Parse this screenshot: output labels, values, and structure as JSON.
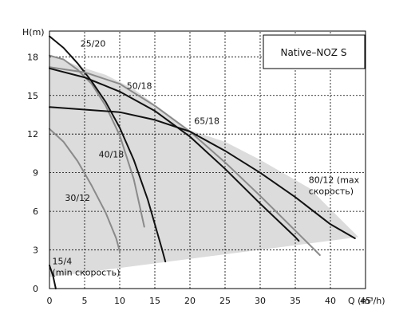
{
  "chart_data": {
    "type": "line",
    "title": "Native–NOZ S",
    "xlabel": "Q (m³/h)",
    "ylabel": "H(m)",
    "xlim": [
      0,
      45
    ],
    "ylim": [
      0,
      20
    ],
    "x_ticks": [
      "0",
      "5",
      "10",
      "15",
      "20",
      "25",
      "30",
      "35",
      "40",
      "45"
    ],
    "y_ticks": [
      "0",
      "3",
      "6",
      "9",
      "12",
      "15",
      "18"
    ],
    "grid": true,
    "shaded_region": {
      "points": [
        [
          0,
          0.9
        ],
        [
          44,
          4.0
        ],
        [
          37,
          7.8
        ],
        [
          30,
          10.0
        ],
        [
          25,
          11.4
        ],
        [
          20,
          12.3
        ],
        [
          15,
          14.3
        ],
        [
          12,
          15.5
        ],
        [
          8,
          16.6
        ],
        [
          4,
          17.3
        ],
        [
          0,
          18.2
        ]
      ]
    },
    "series": [
      {
        "name": "15/4 (min скорость)",
        "color": "#111111",
        "label_lines": [
          "15/4",
          "(min скорость)"
        ],
        "label_pos": [
          0.4,
          1.9
        ],
        "points": [
          [
            0,
            1.8
          ],
          [
            0.5,
            1.0
          ],
          [
            0.9,
            0.0
          ]
        ]
      },
      {
        "name": "30/12",
        "color": "#8a8a8a",
        "label_lines": [
          "30/12"
        ],
        "label_pos": [
          2.2,
          6.8
        ],
        "points": [
          [
            0,
            12.4
          ],
          [
            2,
            11.4
          ],
          [
            4,
            9.9
          ],
          [
            6,
            8.0
          ],
          [
            8,
            5.9
          ],
          [
            9.5,
            3.9
          ],
          [
            10,
            2.9
          ]
        ]
      },
      {
        "name": "40/18",
        "color": "#8a8a8a",
        "label_lines": [
          "40/18"
        ],
        "label_pos": [
          7,
          10.2
        ],
        "points": [
          [
            0,
            18.1
          ],
          [
            2,
            17.8
          ],
          [
            4,
            17.0
          ],
          [
            6,
            15.9
          ],
          [
            8,
            14.2
          ],
          [
            10,
            11.9
          ],
          [
            12,
            8.5
          ],
          [
            13.5,
            4.8
          ]
        ]
      },
      {
        "name": "25/20",
        "color": "#111111",
        "label_lines": [
          "25/20"
        ],
        "label_pos": [
          4.4,
          18.8
        ],
        "points": [
          [
            0,
            19.6
          ],
          [
            2,
            18.7
          ],
          [
            4,
            17.5
          ],
          [
            6,
            16.1
          ],
          [
            8,
            14.5
          ],
          [
            10,
            12.5
          ],
          [
            12,
            10.0
          ],
          [
            14,
            6.9
          ],
          [
            16,
            3.1
          ],
          [
            16.5,
            2.1
          ]
        ]
      },
      {
        "name": "50/18",
        "color": "#8a8a8a",
        "label_lines": [
          "50/18"
        ],
        "label_pos": [
          11,
          15.5
        ],
        "points": [
          [
            0,
            17.2
          ],
          [
            5,
            16.8
          ],
          [
            10,
            15.9
          ],
          [
            15,
            14.2
          ],
          [
            20,
            12.2
          ],
          [
            25,
            9.8
          ],
          [
            30,
            7.2
          ],
          [
            35,
            4.5
          ],
          [
            38.5,
            2.6
          ]
        ]
      },
      {
        "name": "65/18",
        "color": "#111111",
        "label_lines": [
          "65/18"
        ],
        "label_pos": [
          20.6,
          12.8
        ],
        "points": [
          [
            0,
            17.1
          ],
          [
            5,
            16.4
          ],
          [
            10,
            15.3
          ],
          [
            15,
            13.8
          ],
          [
            20,
            11.8
          ],
          [
            25,
            9.3
          ],
          [
            30,
            6.6
          ],
          [
            35,
            4.0
          ],
          [
            35.5,
            3.7
          ]
        ]
      },
      {
        "name": "80/12 (max скорость)",
        "color": "#111111",
        "label_lines": [
          "80/12 (max",
          "скорость)"
        ],
        "label_pos": [
          36.9,
          8.2
        ],
        "points": [
          [
            0,
            14.1
          ],
          [
            10,
            13.7
          ],
          [
            15,
            13.1
          ],
          [
            20,
            12.2
          ],
          [
            25,
            10.7
          ],
          [
            30,
            9.0
          ],
          [
            35,
            7.1
          ],
          [
            40,
            5.0
          ],
          [
            43.5,
            3.9
          ]
        ]
      }
    ]
  }
}
